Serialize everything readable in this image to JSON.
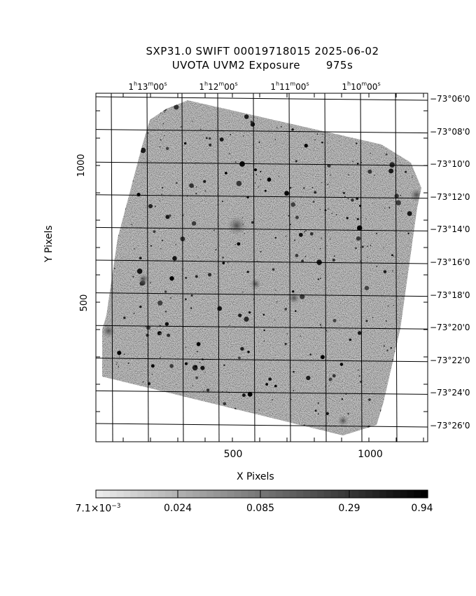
{
  "title": {
    "line1": "SXP31.0 SWIFT 00019718015 2025-06-02",
    "line2": "UVOTA UVM2 Exposure       975s"
  },
  "axes": {
    "x_title": "X Pixels",
    "y_title": "Y Pixels",
    "x_ticks": [
      "500",
      "1000"
    ],
    "y_ticks": [
      "1000",
      "500"
    ]
  },
  "ra_ticks": [
    {
      "h": "1",
      "m": "13",
      "s": "00"
    },
    {
      "h": "1",
      "m": "12",
      "s": "00"
    },
    {
      "h": "1",
      "m": "11",
      "s": "00"
    },
    {
      "h": "1",
      "m": "10",
      "s": "00"
    }
  ],
  "dec_ticks": [
    "−73°06'0",
    "−73°08'0",
    "−73°10'0",
    "−73°12'0",
    "−73°14'0",
    "−73°16'0",
    "−73°18'0",
    "−73°20'0",
    "−73°22'0",
    "−73°24'0",
    "−73°26'0"
  ],
  "colorbar": {
    "labels": [
      {
        "mant": "7.1×10",
        "exp": "−3"
      },
      {
        "text": "0.024"
      },
      {
        "text": "0.085"
      },
      {
        "text": "0.29"
      },
      {
        "text": "0.94"
      }
    ]
  },
  "colors": {
    "frame": "#000000",
    "background": "#ffffff",
    "noise_base": "#c8c8c8"
  }
}
